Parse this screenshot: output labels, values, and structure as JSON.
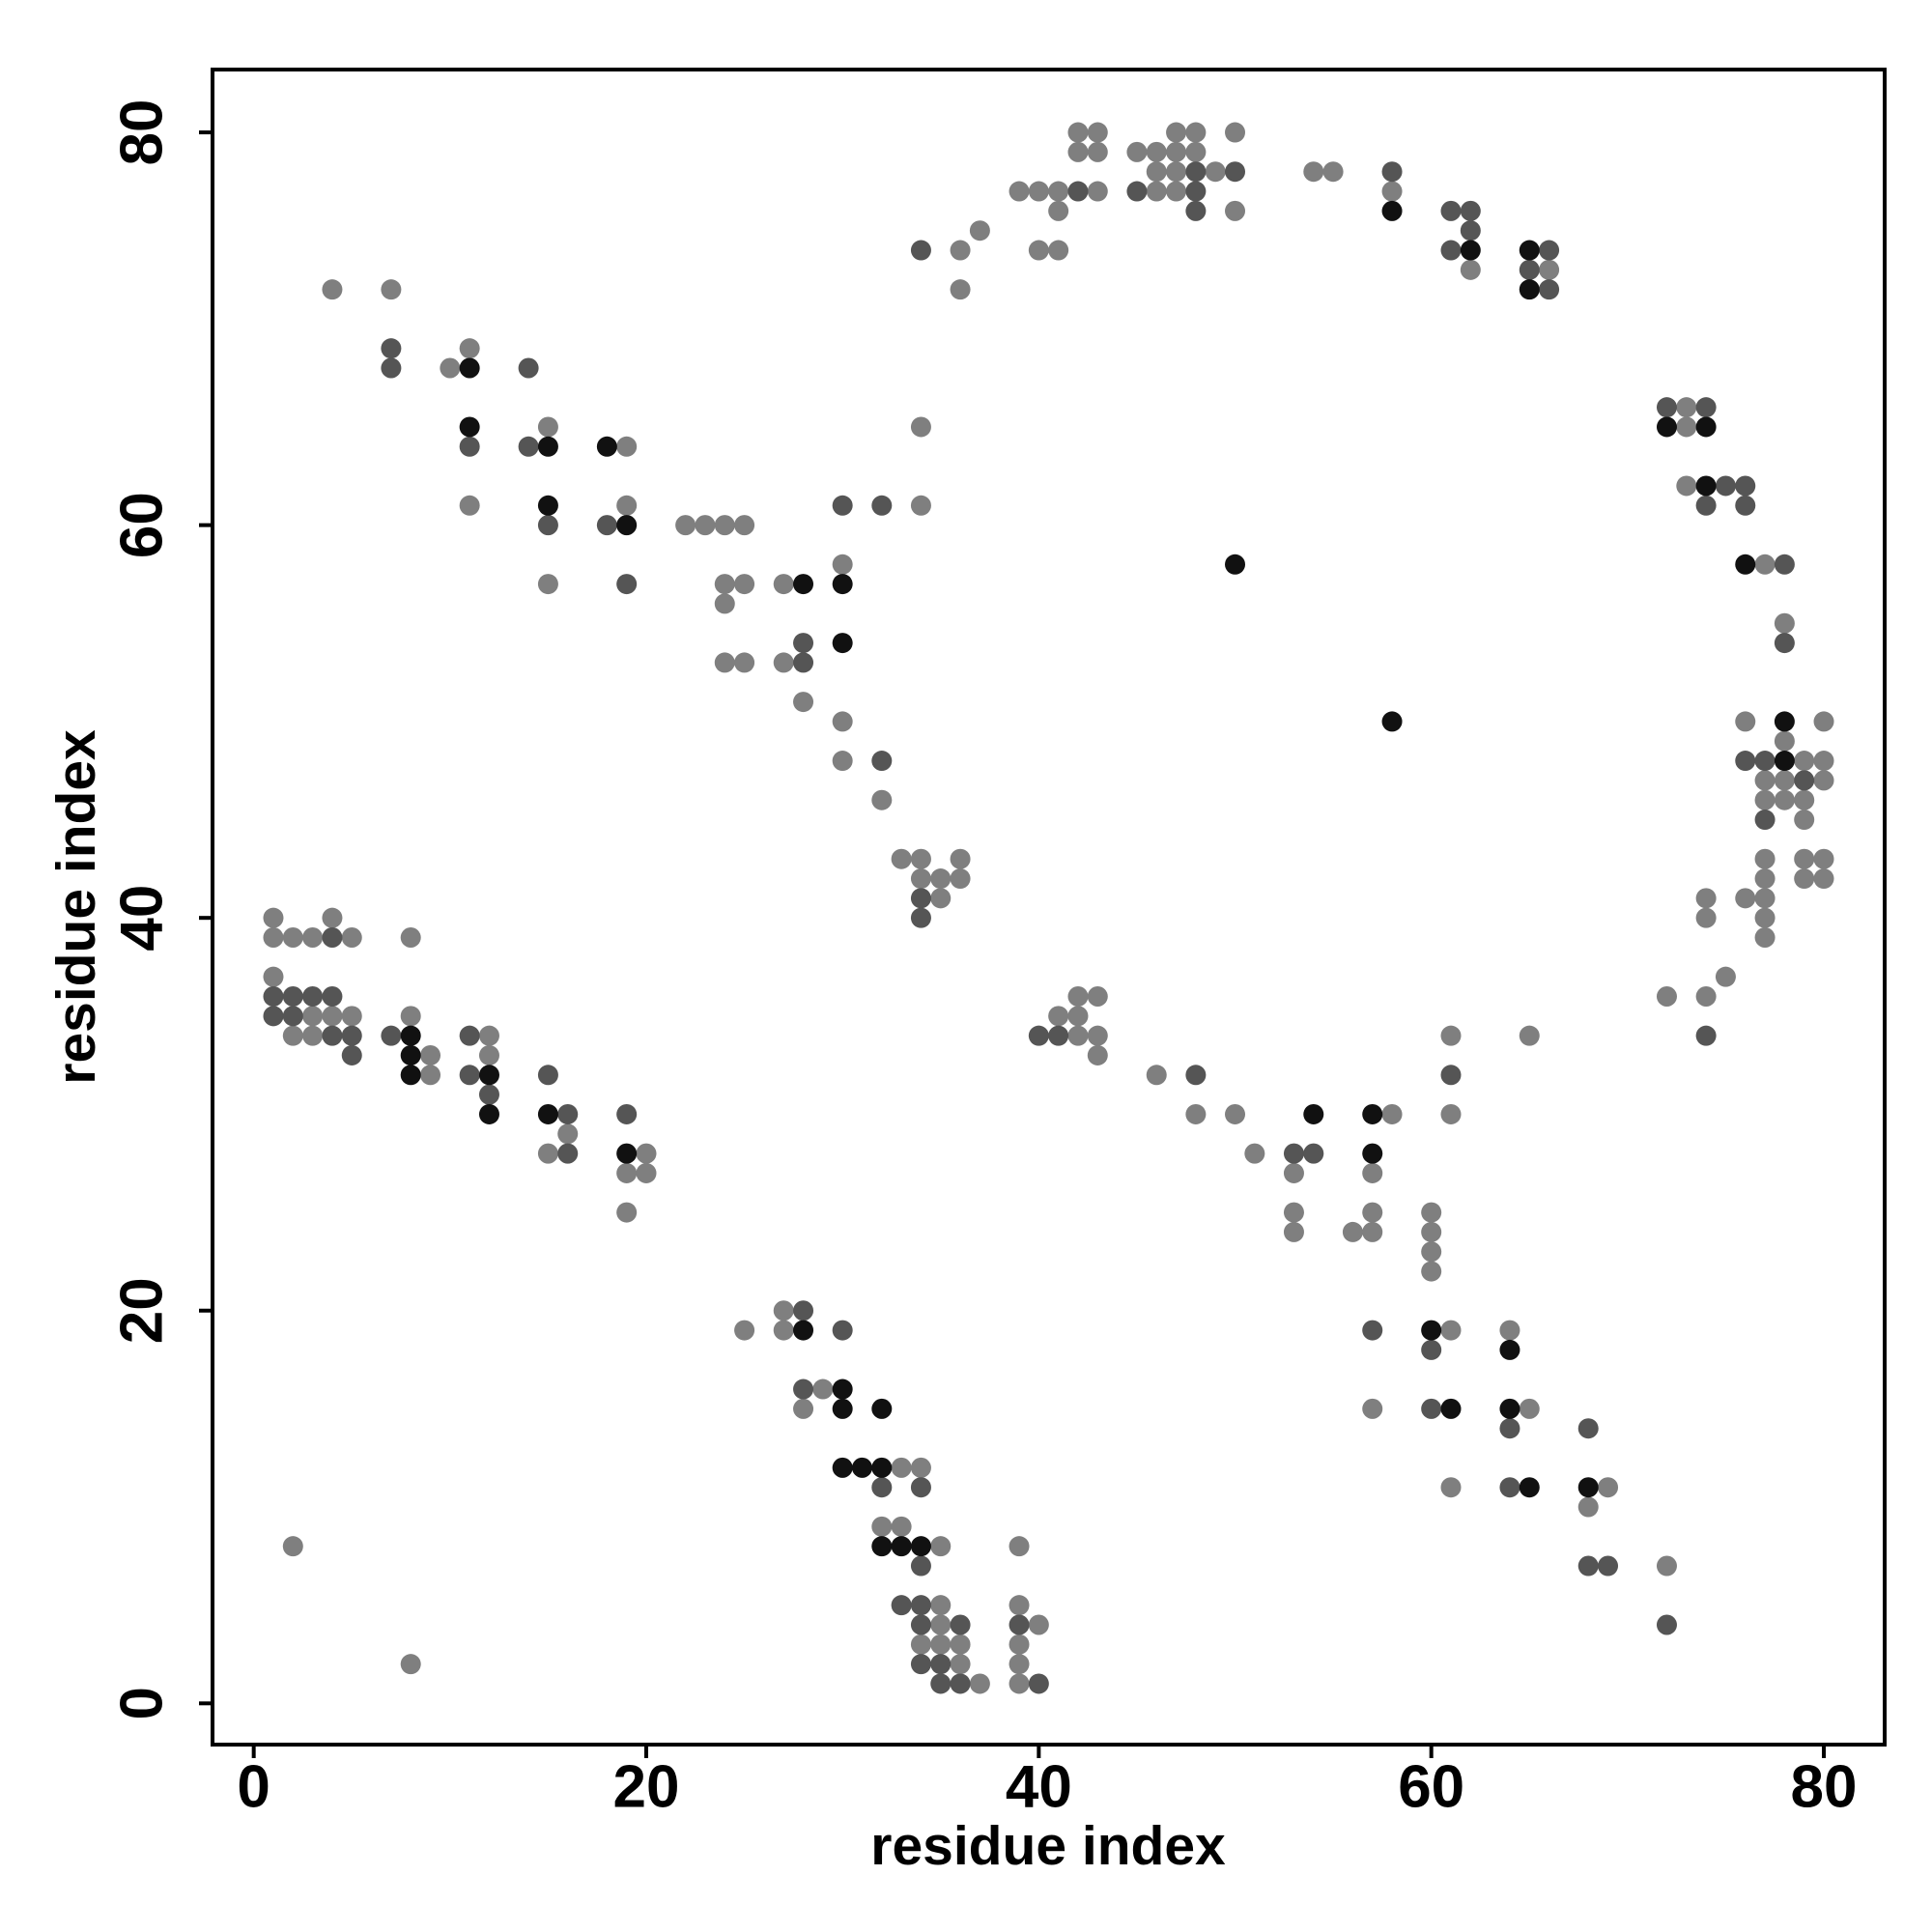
{
  "chart_data": {
    "type": "scatter",
    "x_label": "residue index",
    "y_label": "residue index",
    "xlim": [
      -2.1,
      83.1
    ],
    "ylim": [
      -2.1,
      83.2
    ],
    "xticks": [
      0,
      20,
      40,
      60,
      80
    ],
    "yticks": [
      0,
      20,
      40,
      60,
      80
    ],
    "series": [
      {
        "color": "#7f7f7f",
        "x": [
          4,
          7,
          10,
          11,
          11,
          15,
          15,
          19,
          19,
          22,
          23,
          24,
          25,
          24,
          25,
          24,
          24,
          25,
          27,
          27,
          28,
          30,
          30,
          30,
          32,
          34,
          34,
          36,
          37,
          36,
          33,
          34,
          34,
          35,
          36,
          36,
          35,
          39,
          40,
          41,
          43,
          41,
          40,
          41,
          42,
          43,
          42,
          43,
          45,
          46,
          47,
          48,
          47,
          48,
          46,
          47,
          49,
          50,
          46,
          47,
          50,
          54,
          55,
          58,
          62,
          66,
          73,
          73,
          73,
          77,
          78,
          76,
          80,
          78,
          79,
          80,
          77,
          78,
          80,
          77,
          78,
          79,
          79,
          77,
          79,
          80,
          77,
          79,
          80,
          74,
          76,
          77,
          74,
          77,
          77,
          75,
          72,
          74,
          1,
          4,
          1,
          2,
          3,
          5,
          8,
          1,
          3,
          4,
          5,
          2,
          3,
          8,
          9,
          9,
          12,
          12,
          16,
          15,
          20,
          19,
          20,
          19,
          41,
          42,
          43,
          42,
          42,
          43,
          43,
          46,
          48,
          50,
          51,
          53,
          53,
          53,
          56,
          58,
          57,
          57,
          57,
          61,
          61,
          60,
          60,
          60,
          60,
          65,
          57,
          61,
          61,
          64,
          65,
          69,
          68,
          72,
          2,
          8,
          25,
          27,
          27,
          29,
          28,
          33,
          34,
          32,
          33,
          35,
          35,
          35,
          34,
          35,
          36,
          36,
          37,
          39,
          39,
          40,
          39,
          39,
          39
        ],
        "y": [
          72,
          72,
          68,
          69,
          61,
          65,
          57,
          64,
          61,
          60,
          60,
          60,
          60,
          57,
          57,
          56,
          53,
          53,
          57,
          53,
          51,
          58,
          50,
          48,
          46,
          65,
          61,
          74,
          75,
          72,
          43,
          43,
          42,
          42,
          43,
          42,
          41,
          77,
          77,
          77,
          77,
          76,
          74,
          74,
          80,
          80,
          79,
          79,
          79,
          79,
          79,
          79,
          80,
          80,
          78,
          78,
          78,
          80,
          77,
          77,
          76,
          78,
          78,
          77,
          73,
          73,
          66,
          65,
          62,
          58,
          55,
          50,
          50,
          49,
          48,
          48,
          47,
          47,
          47,
          46,
          46,
          46,
          45,
          43,
          43,
          43,
          42,
          42,
          42,
          41,
          41,
          41,
          40,
          40,
          39,
          37,
          36,
          36,
          40,
          40,
          39,
          39,
          39,
          39,
          39,
          37,
          35,
          35,
          35,
          34,
          34,
          35,
          33,
          32,
          34,
          33,
          29,
          28,
          28,
          27,
          27,
          25,
          35,
          36,
          36,
          35,
          34,
          34,
          33,
          32,
          30,
          30,
          28,
          27,
          25,
          24,
          24,
          30,
          27,
          25,
          24,
          34,
          30,
          25,
          24,
          23,
          22,
          34,
          15,
          19,
          11,
          19,
          15,
          11,
          10,
          7,
          8,
          2,
          19,
          20,
          19,
          16,
          15,
          12,
          12,
          9,
          9,
          8,
          5,
          4,
          3,
          3,
          3,
          2,
          1,
          8,
          5,
          4,
          3,
          2,
          1
        ]
      },
      {
        "color": "#555555",
        "x": [
          7,
          7,
          11,
          14,
          14,
          15,
          18,
          19,
          28,
          28,
          30,
          32,
          32,
          34,
          34,
          34,
          42,
          48,
          50,
          45,
          48,
          48,
          58,
          61,
          62,
          62,
          61,
          66,
          65,
          66,
          72,
          74,
          75,
          76,
          74,
          76,
          78,
          78,
          76,
          77,
          79,
          77,
          74,
          4,
          1,
          2,
          3,
          4,
          1,
          2,
          4,
          5,
          5,
          7,
          11,
          11,
          12,
          15,
          16,
          16,
          19,
          40,
          41,
          48,
          53,
          54,
          61,
          57,
          60,
          60,
          64,
          64,
          68,
          68,
          69,
          72,
          28,
          30,
          28,
          32,
          34,
          34,
          33,
          34,
          34,
          36,
          34,
          35,
          35,
          36,
          39,
          40
        ],
        "y": [
          69,
          68,
          64,
          68,
          64,
          60,
          60,
          57,
          54,
          53,
          61,
          61,
          48,
          74,
          41,
          40,
          77,
          78,
          78,
          77,
          77,
          76,
          78,
          76,
          76,
          75,
          74,
          74,
          73,
          72,
          66,
          66,
          62,
          62,
          61,
          61,
          58,
          54,
          48,
          48,
          47,
          45,
          34,
          39,
          36,
          36,
          36,
          36,
          35,
          35,
          34,
          34,
          33,
          34,
          34,
          32,
          31,
          32,
          30,
          28,
          30,
          34,
          34,
          32,
          28,
          28,
          32,
          19,
          18,
          15,
          14,
          11,
          14,
          7,
          7,
          4,
          20,
          19,
          16,
          11,
          11,
          7,
          5,
          5,
          4,
          4,
          2,
          2,
          1,
          1,
          4,
          1
        ]
      },
      {
        "color": "#111111",
        "x": [
          11,
          11,
          15,
          15,
          18,
          19,
          28,
          30,
          30,
          58,
          62,
          65,
          65,
          50,
          58,
          72,
          74,
          74,
          76,
          78,
          78,
          8,
          8,
          8,
          12,
          12,
          15,
          19,
          54,
          57,
          57,
          60,
          61,
          64,
          64,
          65,
          68,
          28,
          30,
          30,
          32,
          30,
          31,
          32,
          32,
          33,
          34
        ],
        "y": [
          68,
          65,
          64,
          61,
          64,
          60,
          57,
          57,
          54,
          76,
          74,
          74,
          72,
          58,
          50,
          65,
          65,
          62,
          58,
          50,
          48,
          34,
          33,
          32,
          32,
          30,
          30,
          28,
          30,
          30,
          28,
          19,
          15,
          18,
          15,
          11,
          11,
          19,
          16,
          15,
          15,
          12,
          12,
          12,
          8,
          8,
          8
        ]
      }
    ]
  }
}
